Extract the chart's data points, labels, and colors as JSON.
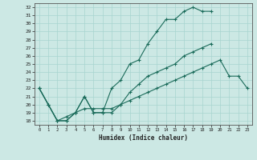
{
  "xlabel": "Humidex (Indice chaleur)",
  "bg_color": "#cce8e4",
  "grid_color": "#a8d4cf",
  "line_color": "#1a6b5a",
  "xlim": [
    -0.5,
    23.5
  ],
  "ylim": [
    17.5,
    32.5
  ],
  "yticks": [
    18,
    19,
    20,
    21,
    22,
    23,
    24,
    25,
    26,
    27,
    28,
    29,
    30,
    31,
    32
  ],
  "xticks": [
    0,
    1,
    2,
    3,
    4,
    5,
    6,
    7,
    8,
    9,
    10,
    11,
    12,
    13,
    14,
    15,
    16,
    17,
    18,
    19,
    20,
    21,
    22,
    23
  ],
  "line1_y": [
    22,
    20,
    18,
    18,
    19,
    21,
    19,
    19,
    22,
    23,
    25,
    25.5,
    27.5,
    29,
    30.5,
    30.5,
    31.5,
    32,
    31.5,
    31.5,
    null,
    null,
    null,
    null
  ],
  "line2_y": [
    22,
    20,
    18,
    18,
    19,
    21,
    19,
    19,
    19,
    20,
    21.5,
    22.5,
    23.5,
    24,
    24.5,
    25,
    26,
    26.5,
    27,
    27.5,
    null,
    null,
    null,
    null
  ],
  "line3_y": [
    22,
    20,
    18,
    18.5,
    19,
    19.5,
    19.5,
    19.5,
    19.5,
    20,
    20.5,
    21,
    21.5,
    22,
    22.5,
    23,
    23.5,
    24,
    24.5,
    25,
    25.5,
    23.5,
    23.5,
    22
  ]
}
